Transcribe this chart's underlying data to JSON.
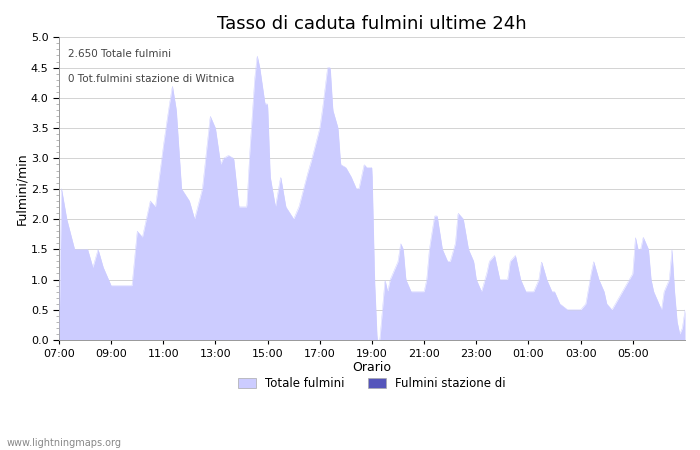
{
  "title": "Tasso di caduta fulmini ultime 24h",
  "xlabel": "Orario",
  "ylabel": "Fulmini/min",
  "ylim": [
    0.0,
    5.0
  ],
  "yticks": [
    0.0,
    0.5,
    1.0,
    1.5,
    2.0,
    2.5,
    3.0,
    3.5,
    4.0,
    4.5,
    5.0
  ],
  "xtick_labels": [
    "07:00",
    "09:00",
    "11:00",
    "13:00",
    "15:00",
    "17:00",
    "19:00",
    "21:00",
    "23:00",
    "01:00",
    "03:00",
    "05:00"
  ],
  "annotation_line1": "2.650 Totale fulmini",
  "annotation_line2": "0 Tot.fulmini stazione di Witnica",
  "legend1": "Totale fulmini",
  "legend2": "Fulmini stazione di",
  "fill_color": "#ccccff",
  "fill_color_light": "#dde0ff",
  "fill_color2": "#5555bb",
  "background_color": "#ffffff",
  "watermark": "www.lightningmaps.org",
  "title_fontsize": 13,
  "axis_fontsize": 9,
  "tick_fontsize": 8,
  "figsize": [
    7.0,
    4.5
  ],
  "dpi": 100
}
